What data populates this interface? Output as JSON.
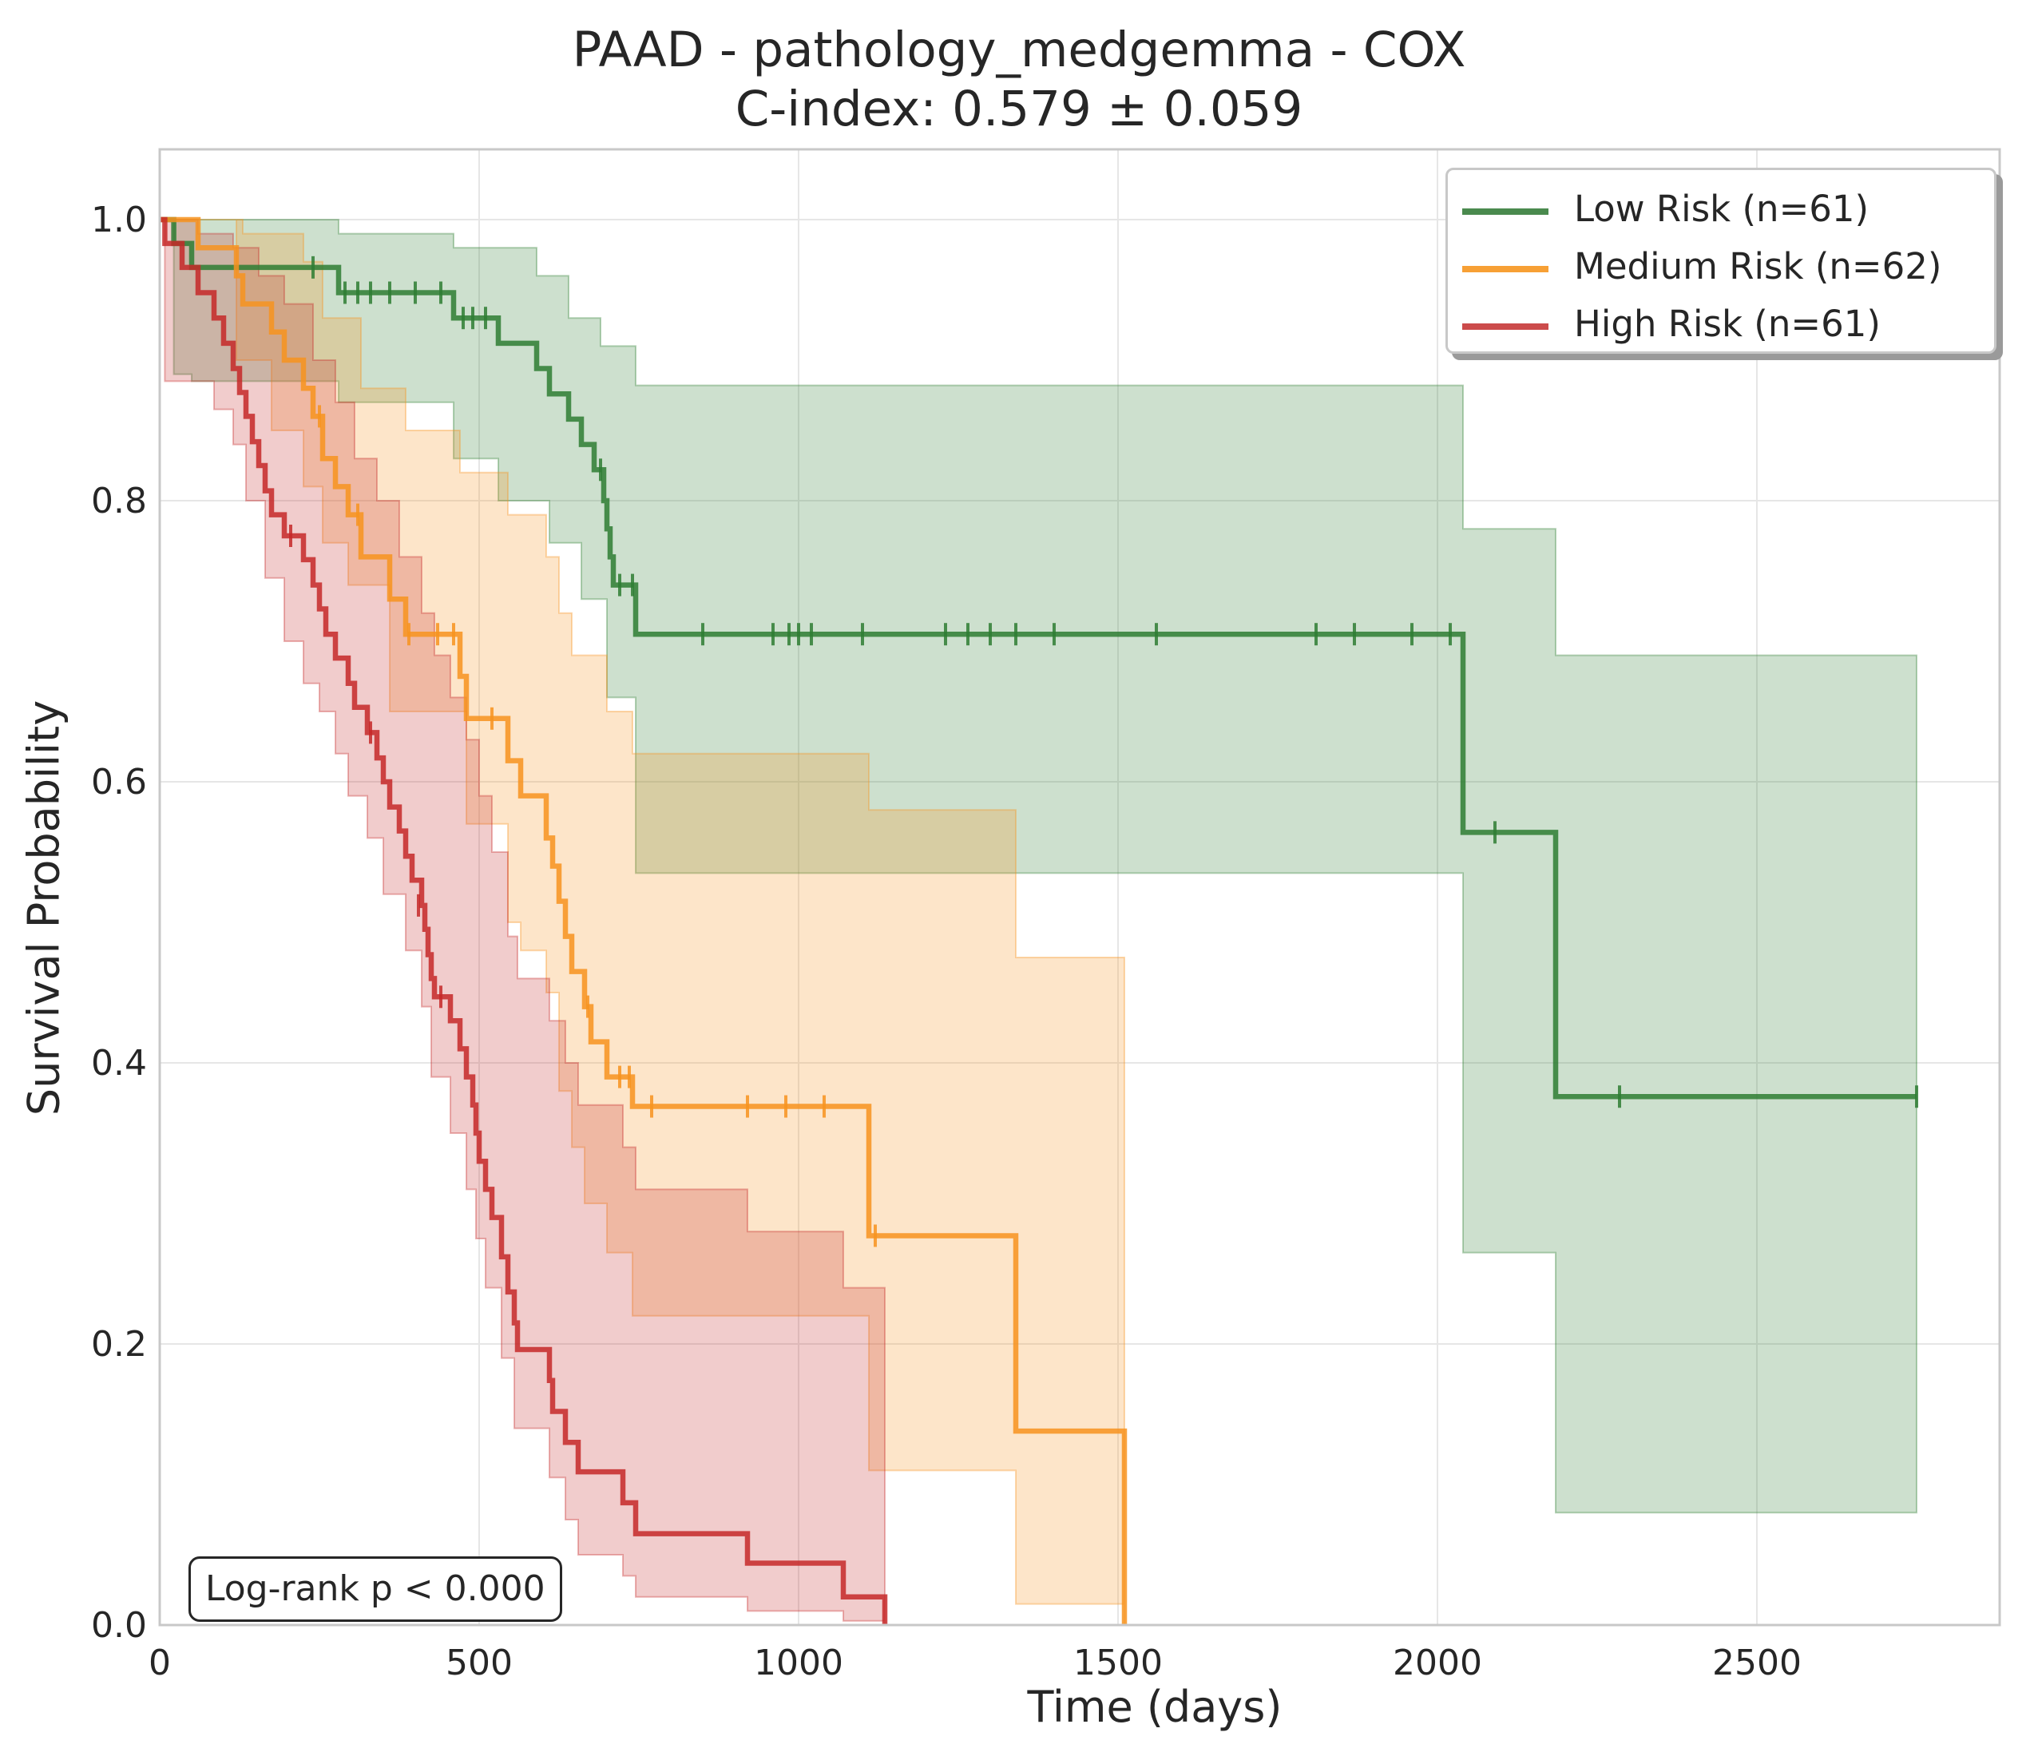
{
  "chart_data": {
    "type": "line",
    "subtype": "kaplan-meier",
    "title": "PAAD - pathology_medgemma - COX",
    "subtitle": "C-index: 0.579 ± 0.059",
    "xlabel": "Time (days)",
    "ylabel": "Survival Probability",
    "xlim": [
      0,
      2880
    ],
    "ylim": [
      0,
      1.05
    ],
    "xticks": [
      0,
      500,
      1000,
      1500,
      2000,
      2500
    ],
    "yticks": [
      0.0,
      0.2,
      0.4,
      0.6,
      0.8,
      1.0
    ],
    "xtick_labels": [
      "0",
      "500",
      "1000",
      "1500",
      "2000",
      "2500"
    ],
    "ytick_labels": [
      "0.0",
      "0.2",
      "0.4",
      "0.6",
      "0.8",
      "1.0"
    ],
    "grid": true,
    "legend_position": "top-right",
    "annotation": "Log-rank p < 0.000",
    "series": [
      {
        "name": "Low Risk (n=61)",
        "color": "#2e7d32",
        "steps": [
          [
            0,
            1.0
          ],
          [
            22,
            0.983
          ],
          [
            50,
            0.966
          ],
          [
            280,
            0.948
          ],
          [
            460,
            0.93
          ],
          [
            530,
            0.912
          ],
          [
            590,
            0.894
          ],
          [
            610,
            0.876
          ],
          [
            640,
            0.858
          ],
          [
            660,
            0.84
          ],
          [
            680,
            0.822
          ],
          [
            695,
            0.8
          ],
          [
            700,
            0.78
          ],
          [
            705,
            0.76
          ],
          [
            710,
            0.74
          ],
          [
            745,
            0.705
          ],
          [
            2040,
            0.564
          ],
          [
            2185,
            0.376
          ],
          [
            2750,
            0.376
          ]
        ],
        "ci_upper": [
          [
            0,
            1.0
          ],
          [
            280,
            0.99
          ],
          [
            460,
            0.98
          ],
          [
            590,
            0.96
          ],
          [
            640,
            0.93
          ],
          [
            690,
            0.91
          ],
          [
            745,
            0.882
          ],
          [
            2040,
            0.78
          ],
          [
            2185,
            0.69
          ],
          [
            2750,
            0.69
          ]
        ],
        "ci_lower": [
          [
            0,
            1.0
          ],
          [
            22,
            0.89
          ],
          [
            50,
            0.885
          ],
          [
            280,
            0.87
          ],
          [
            460,
            0.83
          ],
          [
            530,
            0.8
          ],
          [
            610,
            0.77
          ],
          [
            660,
            0.73
          ],
          [
            700,
            0.66
          ],
          [
            745,
            0.535
          ],
          [
            2040,
            0.265
          ],
          [
            2185,
            0.08
          ],
          [
            2750,
            0.08
          ]
        ],
        "censored": [
          [
            240,
            0.966
          ],
          [
            290,
            0.948
          ],
          [
            310,
            0.948
          ],
          [
            330,
            0.948
          ],
          [
            360,
            0.948
          ],
          [
            400,
            0.948
          ],
          [
            440,
            0.948
          ],
          [
            475,
            0.93
          ],
          [
            490,
            0.93
          ],
          [
            510,
            0.93
          ],
          [
            690,
            0.822
          ],
          [
            720,
            0.74
          ],
          [
            740,
            0.74
          ],
          [
            850,
            0.705
          ],
          [
            960,
            0.705
          ],
          [
            985,
            0.705
          ],
          [
            1000,
            0.705
          ],
          [
            1020,
            0.705
          ],
          [
            1100,
            0.705
          ],
          [
            1230,
            0.705
          ],
          [
            1265,
            0.705
          ],
          [
            1300,
            0.705
          ],
          [
            1340,
            0.705
          ],
          [
            1400,
            0.705
          ],
          [
            1560,
            0.705
          ],
          [
            1810,
            0.705
          ],
          [
            1870,
            0.705
          ],
          [
            1960,
            0.705
          ],
          [
            2020,
            0.705
          ],
          [
            2090,
            0.564
          ],
          [
            2285,
            0.376
          ],
          [
            2750,
            0.376
          ]
        ]
      },
      {
        "name": "Medium Risk (n=62)",
        "color": "#f7931e",
        "steps": [
          [
            0,
            1.0
          ],
          [
            60,
            0.98
          ],
          [
            120,
            0.96
          ],
          [
            130,
            0.94
          ],
          [
            175,
            0.92
          ],
          [
            195,
            0.9
          ],
          [
            225,
            0.88
          ],
          [
            240,
            0.86
          ],
          [
            255,
            0.83
          ],
          [
            275,
            0.81
          ],
          [
            295,
            0.79
          ],
          [
            315,
            0.76
          ],
          [
            360,
            0.73
          ],
          [
            385,
            0.705
          ],
          [
            470,
            0.675
          ],
          [
            480,
            0.645
          ],
          [
            545,
            0.615
          ],
          [
            565,
            0.59
          ],
          [
            605,
            0.56
          ],
          [
            615,
            0.54
          ],
          [
            625,
            0.515
          ],
          [
            635,
            0.49
          ],
          [
            645,
            0.465
          ],
          [
            665,
            0.44
          ],
          [
            675,
            0.415
          ],
          [
            700,
            0.39
          ],
          [
            740,
            0.369
          ],
          [
            1110,
            0.277
          ],
          [
            1340,
            0.138
          ],
          [
            1510,
            0.0
          ]
        ],
        "ci_upper": [
          [
            0,
            1.0
          ],
          [
            130,
            0.99
          ],
          [
            225,
            0.97
          ],
          [
            255,
            0.93
          ],
          [
            315,
            0.88
          ],
          [
            385,
            0.85
          ],
          [
            470,
            0.82
          ],
          [
            545,
            0.79
          ],
          [
            605,
            0.76
          ],
          [
            625,
            0.72
          ],
          [
            645,
            0.69
          ],
          [
            700,
            0.65
          ],
          [
            740,
            0.62
          ],
          [
            1110,
            0.58
          ],
          [
            1340,
            0.475
          ],
          [
            1510,
            0.41
          ]
        ],
        "ci_lower": [
          [
            0,
            1.0
          ],
          [
            120,
            0.9
          ],
          [
            175,
            0.85
          ],
          [
            225,
            0.81
          ],
          [
            255,
            0.77
          ],
          [
            295,
            0.74
          ],
          [
            360,
            0.65
          ],
          [
            480,
            0.57
          ],
          [
            545,
            0.5
          ],
          [
            565,
            0.48
          ],
          [
            605,
            0.45
          ],
          [
            625,
            0.38
          ],
          [
            645,
            0.34
          ],
          [
            665,
            0.3
          ],
          [
            700,
            0.265
          ],
          [
            740,
            0.22
          ],
          [
            1110,
            0.11
          ],
          [
            1340,
            0.015
          ],
          [
            1510,
            0.0
          ]
        ],
        "censored": [
          [
            250,
            0.86
          ],
          [
            310,
            0.79
          ],
          [
            390,
            0.705
          ],
          [
            435,
            0.705
          ],
          [
            460,
            0.705
          ],
          [
            520,
            0.645
          ],
          [
            670,
            0.44
          ],
          [
            720,
            0.39
          ],
          [
            735,
            0.39
          ],
          [
            770,
            0.369
          ],
          [
            920,
            0.369
          ],
          [
            980,
            0.369
          ],
          [
            1040,
            0.369
          ],
          [
            1120,
            0.277
          ]
        ]
      },
      {
        "name": "High Risk (n=61)",
        "color": "#c62828",
        "steps": [
          [
            0,
            1.0
          ],
          [
            8,
            0.983
          ],
          [
            35,
            0.966
          ],
          [
            60,
            0.948
          ],
          [
            85,
            0.93
          ],
          [
            100,
            0.912
          ],
          [
            115,
            0.894
          ],
          [
            125,
            0.877
          ],
          [
            135,
            0.86
          ],
          [
            145,
            0.842
          ],
          [
            155,
            0.825
          ],
          [
            165,
            0.807
          ],
          [
            175,
            0.79
          ],
          [
            195,
            0.775
          ],
          [
            225,
            0.758
          ],
          [
            240,
            0.74
          ],
          [
            250,
            0.723
          ],
          [
            260,
            0.705
          ],
          [
            275,
            0.688
          ],
          [
            295,
            0.67
          ],
          [
            305,
            0.653
          ],
          [
            325,
            0.635
          ],
          [
            340,
            0.617
          ],
          [
            350,
            0.6
          ],
          [
            360,
            0.582
          ],
          [
            375,
            0.565
          ],
          [
            385,
            0.547
          ],
          [
            395,
            0.53
          ],
          [
            410,
            0.512
          ],
          [
            415,
            0.495
          ],
          [
            420,
            0.477
          ],
          [
            425,
            0.46
          ],
          [
            430,
            0.447
          ],
          [
            455,
            0.43
          ],
          [
            470,
            0.41
          ],
          [
            480,
            0.39
          ],
          [
            490,
            0.37
          ],
          [
            495,
            0.35
          ],
          [
            500,
            0.33
          ],
          [
            510,
            0.31
          ],
          [
            520,
            0.29
          ],
          [
            535,
            0.262
          ],
          [
            545,
            0.237
          ],
          [
            555,
            0.215
          ],
          [
            560,
            0.196
          ],
          [
            610,
            0.174
          ],
          [
            615,
            0.152
          ],
          [
            635,
            0.13
          ],
          [
            655,
            0.109
          ],
          [
            725,
            0.087
          ],
          [
            745,
            0.065
          ],
          [
            920,
            0.044
          ],
          [
            1070,
            0.02
          ],
          [
            1135,
            0.0
          ]
        ],
        "ci_upper": [
          [
            0,
            1.0
          ],
          [
            60,
            0.99
          ],
          [
            115,
            0.98
          ],
          [
            155,
            0.96
          ],
          [
            195,
            0.94
          ],
          [
            240,
            0.9
          ],
          [
            275,
            0.87
          ],
          [
            305,
            0.83
          ],
          [
            340,
            0.8
          ],
          [
            375,
            0.76
          ],
          [
            410,
            0.72
          ],
          [
            430,
            0.69
          ],
          [
            455,
            0.66
          ],
          [
            480,
            0.63
          ],
          [
            500,
            0.59
          ],
          [
            520,
            0.55
          ],
          [
            545,
            0.49
          ],
          [
            560,
            0.46
          ],
          [
            610,
            0.43
          ],
          [
            635,
            0.4
          ],
          [
            655,
            0.37
          ],
          [
            725,
            0.34
          ],
          [
            745,
            0.31
          ],
          [
            920,
            0.28
          ],
          [
            1070,
            0.24
          ],
          [
            1135,
            0.24
          ]
        ],
        "ci_lower": [
          [
            0,
            1.0
          ],
          [
            8,
            0.885
          ],
          [
            85,
            0.865
          ],
          [
            115,
            0.84
          ],
          [
            135,
            0.8
          ],
          [
            165,
            0.745
          ],
          [
            195,
            0.7
          ],
          [
            225,
            0.67
          ],
          [
            250,
            0.65
          ],
          [
            275,
            0.62
          ],
          [
            295,
            0.59
          ],
          [
            325,
            0.56
          ],
          [
            350,
            0.52
          ],
          [
            385,
            0.48
          ],
          [
            410,
            0.44
          ],
          [
            425,
            0.39
          ],
          [
            455,
            0.35
          ],
          [
            480,
            0.31
          ],
          [
            495,
            0.275
          ],
          [
            510,
            0.24
          ],
          [
            535,
            0.19
          ],
          [
            555,
            0.14
          ],
          [
            610,
            0.105
          ],
          [
            635,
            0.075
          ],
          [
            655,
            0.05
          ],
          [
            725,
            0.035
          ],
          [
            745,
            0.02
          ],
          [
            920,
            0.01
          ],
          [
            1070,
            0.003
          ],
          [
            1135,
            0.0
          ]
        ],
        "censored": [
          [
            205,
            0.775
          ],
          [
            330,
            0.635
          ],
          [
            405,
            0.512
          ],
          [
            440,
            0.447
          ]
        ]
      }
    ]
  }
}
